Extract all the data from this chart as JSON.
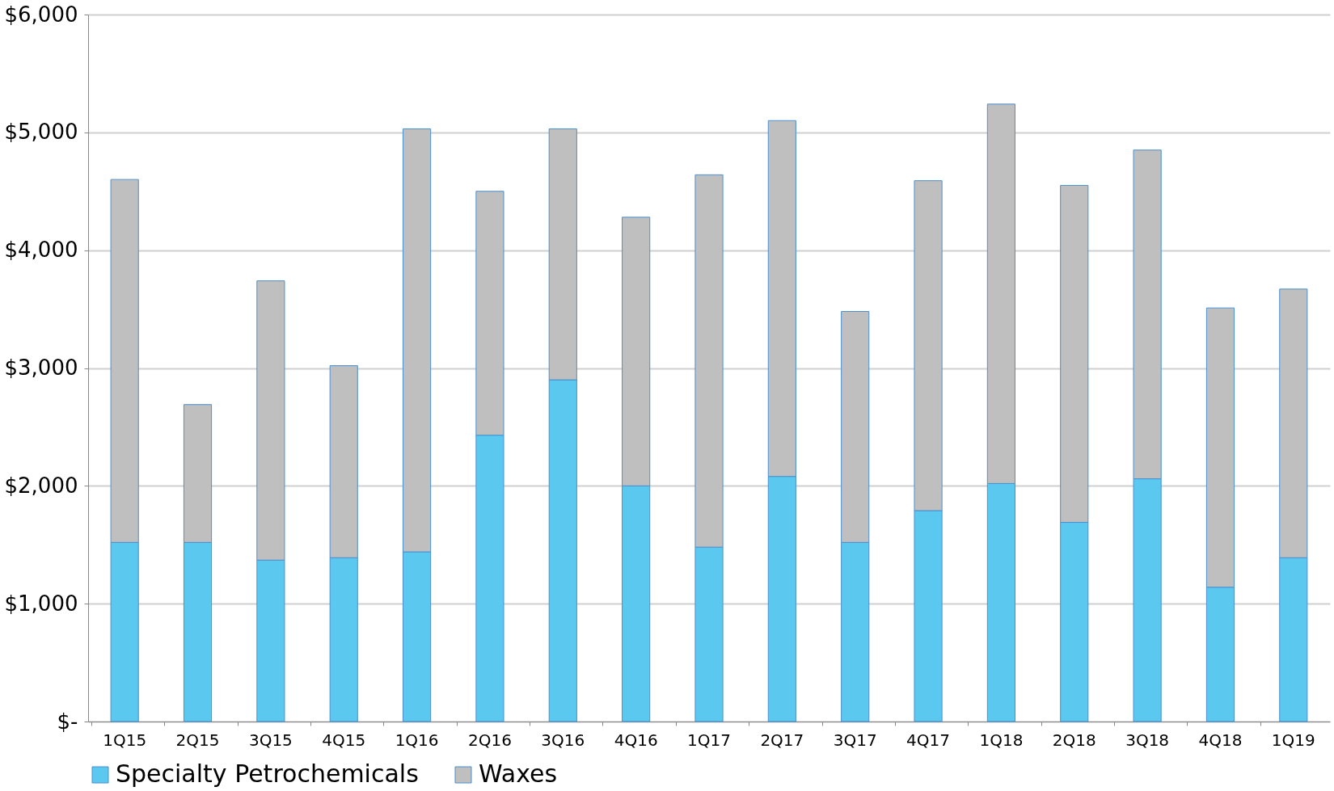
{
  "chart_data": {
    "type": "bar",
    "stacked": true,
    "categories": [
      "1Q15",
      "2Q15",
      "3Q15",
      "4Q15",
      "1Q16",
      "2Q16",
      "3Q16",
      "4Q16",
      "1Q17",
      "2Q17",
      "3Q17",
      "4Q17",
      "1Q18",
      "2Q18",
      "3Q18",
      "4Q18",
      "1Q19"
    ],
    "series": [
      {
        "name": "Specialty Petrochemicals",
        "color": "#5bc8ef",
        "values": [
          1520,
          1520,
          1370,
          1390,
          1440,
          2430,
          2900,
          2000,
          1480,
          2080,
          1520,
          1790,
          2020,
          1690,
          2060,
          1140,
          1390
        ]
      },
      {
        "name": "Waxes",
        "color": "#bfbfbf",
        "values": [
          3080,
          1170,
          2370,
          1630,
          3590,
          2070,
          2130,
          2280,
          3160,
          3020,
          1960,
          2800,
          3220,
          2860,
          2790,
          2370,
          2280
        ]
      }
    ],
    "ylim": [
      0,
      6000
    ],
    "yticks": [
      {
        "value": 0,
        "label": "$-"
      },
      {
        "value": 1000,
        "label": "$1,000"
      },
      {
        "value": 2000,
        "label": "$2,000"
      },
      {
        "value": 3000,
        "label": "$3,000"
      },
      {
        "value": 4000,
        "label": "$4,000"
      },
      {
        "value": 5000,
        "label": "$5,000"
      },
      {
        "value": 6000,
        "label": "$6,000"
      }
    ],
    "grid": "y",
    "legend": "bottom"
  }
}
